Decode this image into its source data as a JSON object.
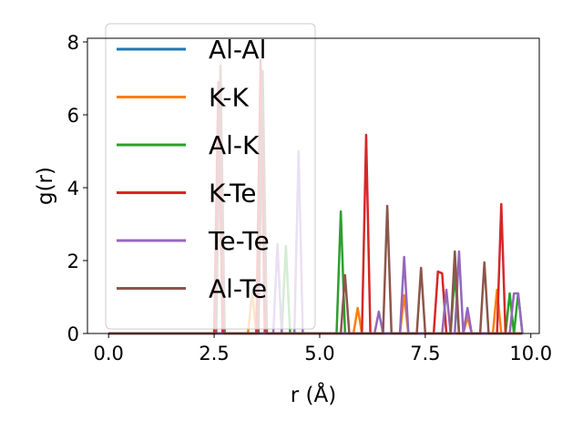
{
  "chart_data": {
    "type": "line",
    "title": "",
    "xlabel": "r (Å)",
    "ylabel": "g(r)",
    "xlim": [
      -0.5,
      10.2
    ],
    "ylim": [
      0,
      8.1
    ],
    "xticks": [
      "0.0",
      "2.5",
      "5.0",
      "7.5",
      "10.0"
    ],
    "xtick_values": [
      0,
      2.5,
      5,
      7.5,
      10
    ],
    "yticks": [
      "0",
      "2",
      "4",
      "6",
      "8"
    ],
    "ytick_values": [
      0,
      2,
      4,
      6,
      8
    ],
    "legend_position": "upper-left",
    "series": [
      {
        "name": "Al-Al",
        "color": "#1f77b4",
        "x": [
          0,
          9.8
        ],
        "y": [
          0,
          0
        ]
      },
      {
        "name": "K-K",
        "color": "#ff7f0e",
        "x": [
          0,
          3.3,
          3.4,
          3.5,
          5.8,
          5.9,
          6.0,
          6.6,
          6.9,
          7.0,
          7.1,
          8.4,
          8.5,
          8.6,
          9.1,
          9.2,
          9.3,
          9.8
        ],
        "y": [
          0,
          0,
          1.1,
          0,
          0,
          0.7,
          0,
          0,
          0,
          1.05,
          0,
          0,
          0.45,
          0,
          0,
          1.2,
          0,
          0
        ]
      },
      {
        "name": "Al-K",
        "color": "#2ca02c",
        "x": [
          0,
          4.1,
          4.2,
          4.3,
          5.4,
          5.5,
          5.6,
          8.1,
          8.2,
          8.3,
          9.4,
          9.5,
          9.6,
          9.7,
          9.8
        ],
        "y": [
          0,
          0,
          2.4,
          0,
          0,
          3.35,
          0,
          0,
          1.65,
          0,
          0,
          1.1,
          0,
          1.1,
          0
        ]
      },
      {
        "name": "K-Te",
        "color": "#d62728",
        "x": [
          0,
          2.5,
          2.6,
          2.7,
          3.5,
          3.6,
          3.7,
          6.0,
          6.1,
          6.2,
          7.7,
          7.8,
          7.9,
          8.0,
          9.2,
          9.3,
          9.4,
          9.8
        ],
        "y": [
          0,
          0,
          6.9,
          0,
          0,
          7.5,
          0,
          0,
          5.45,
          0,
          0,
          1.7,
          1.65,
          0,
          0,
          3.55,
          0,
          0
        ]
      },
      {
        "name": "Te-Te",
        "color": "#9467bd",
        "x": [
          0,
          3.9,
          4.0,
          4.1,
          4.4,
          4.5,
          4.6,
          6.3,
          6.4,
          6.5,
          6.9,
          7.0,
          7.1,
          7.9,
          8.0,
          8.1,
          8.2,
          8.3,
          8.4,
          8.5,
          8.6,
          9.5,
          9.6,
          9.7,
          9.8
        ],
        "y": [
          0,
          0,
          2.45,
          0,
          0,
          5.0,
          0,
          0,
          0.6,
          0,
          0,
          2.1,
          0,
          0,
          1.2,
          0,
          0,
          2.25,
          0,
          0.7,
          0,
          0,
          1.1,
          1.1,
          0
        ]
      },
      {
        "name": "Al-Te",
        "color": "#8c564b",
        "x": [
          0,
          2.55,
          2.65,
          2.75,
          3.55,
          3.65,
          3.75,
          5.5,
          5.6,
          5.7,
          6.5,
          6.6,
          6.7,
          7.3,
          7.4,
          7.5,
          8.1,
          8.2,
          8.3,
          8.8,
          8.9,
          9.0,
          9.8
        ],
        "y": [
          0,
          0,
          7.35,
          0,
          0,
          7.2,
          0,
          0,
          1.6,
          0,
          0,
          3.5,
          0,
          0,
          1.8,
          0,
          0,
          2.25,
          0,
          0,
          1.95,
          0,
          0
        ]
      }
    ]
  }
}
